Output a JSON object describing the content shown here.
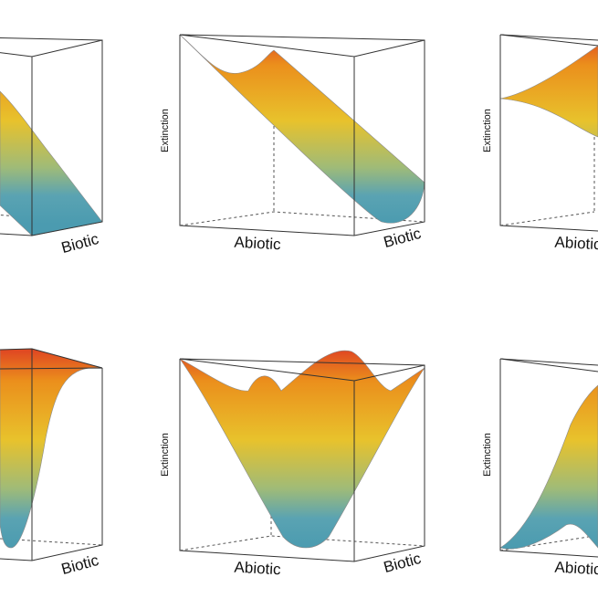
{
  "chart_data": [
    {
      "type": "surface",
      "panel": "top-left",
      "xlabel": "",
      "ylabel": "Biotic",
      "zlabel": "",
      "shape": "tilted plane sloping down toward high Biotic"
    },
    {
      "type": "surface",
      "panel": "top-middle",
      "xlabel": "Abiotic",
      "ylabel": "Biotic",
      "zlabel": "Extinction",
      "shape": "diagonal trough descending from high to low Extinction"
    },
    {
      "type": "surface",
      "panel": "top-right",
      "xlabel": "Abiotic",
      "ylabel": "",
      "zlabel": "Extinction",
      "shape": "saddle rising toward back"
    },
    {
      "type": "surface",
      "panel": "bottom-left",
      "xlabel": "",
      "ylabel": "Biotic",
      "zlabel": "",
      "shape": "narrow deep funnel"
    },
    {
      "type": "surface",
      "panel": "bottom-middle",
      "xlabel": "Abiotic",
      "ylabel": "Biotic",
      "zlabel": "Extinction",
      "shape": "bowl with central minimum"
    },
    {
      "type": "surface",
      "panel": "bottom-right",
      "xlabel": "Abiotic",
      "ylabel": "",
      "zlabel": "Extinction",
      "shape": "ridge rising toward back corner"
    }
  ],
  "colors": {
    "high": "#e04a22",
    "upper": "#eb8f1c",
    "mid": "#e8c22c",
    "low": "#9fbb78",
    "bottom": "#4b9bb0"
  },
  "labels": {
    "tl_y": "Biotic",
    "tm_x": "Abiotic",
    "tm_y": "Biotic",
    "tm_z": "Extinction",
    "tr_x": "Abiotic",
    "tr_z": "Extinction",
    "bl_y": "Biotic",
    "bm_x": "Abiotic",
    "bm_y": "Biotic",
    "bm_z": "Extinction",
    "br_x": "Abiotic",
    "br_z": "Extinction"
  }
}
